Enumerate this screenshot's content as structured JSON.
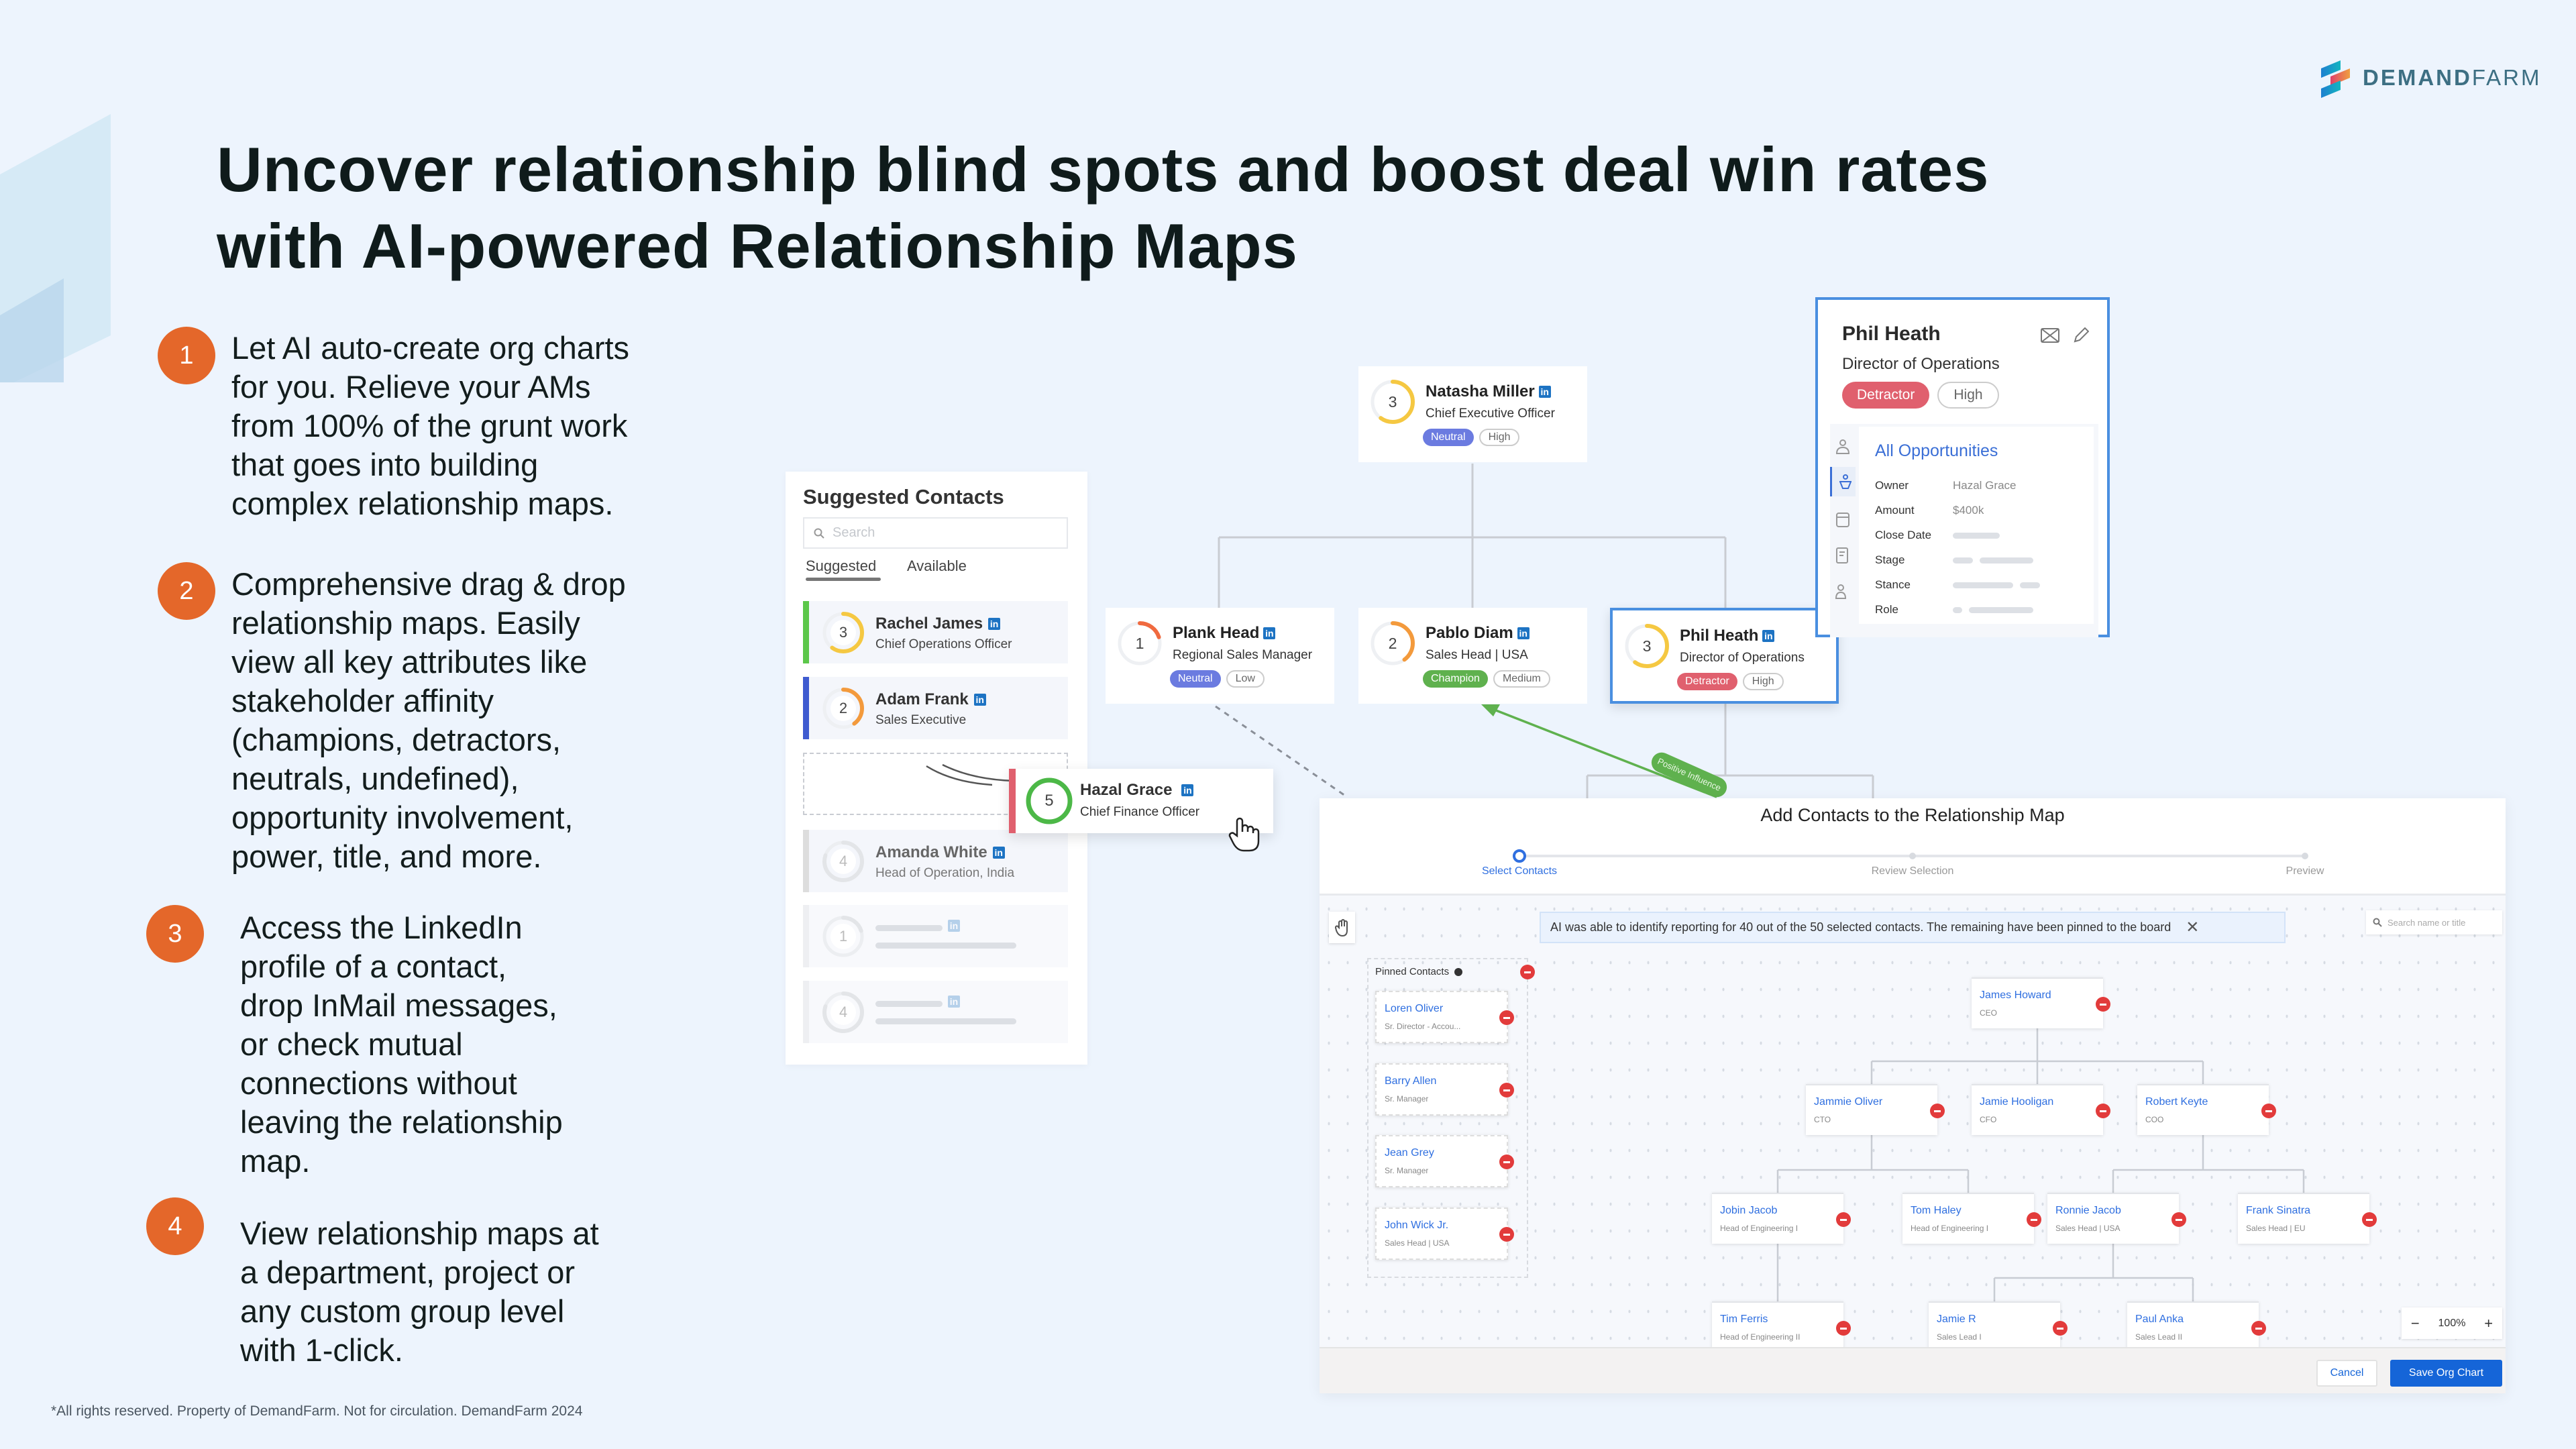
{
  "brand": {
    "logo_bold": "DEMAND",
    "logo_light": "FARM"
  },
  "headline": {
    "lines": [
      "Uncover relationship blind spots and boost deal win rates",
      "with AI-powered Relationship Maps"
    ]
  },
  "bullets": [
    {
      "num": "1",
      "lines": [
        "Let AI auto-create org charts",
        "for you. Relieve your AMs",
        "from 100% of the grunt work",
        "that goes into building",
        "complex relationship maps."
      ]
    },
    {
      "num": "2",
      "lines": [
        "Comprehensive drag & drop",
        "relationship maps. Easily",
        "view all key attributes like",
        "stakeholder affinity",
        "(champions, detractors,",
        "neutrals, undefined),",
        "opportunity involvement,",
        "power, title, and more."
      ]
    },
    {
      "num": "3",
      "lines": [
        "Access the LinkedIn",
        "profile of a contact,",
        "drop InMail messages,",
        "or check mutual",
        "connections without",
        "leaving the relationship",
        "map."
      ]
    },
    {
      "num": "4",
      "lines": [
        "View relationship maps at",
        "a department, project or",
        "any custom group level",
        "with 1-click."
      ]
    }
  ],
  "footer": "*All rights reserved. Property of DemandFarm. Not for circulation. DemandFarm 2024",
  "colors": {
    "accent": "#e4672a",
    "neutral": "#6b7be0",
    "champion": "#5fb14e",
    "detractor": "#e0606e",
    "primary": "#1565d8"
  },
  "suggested": {
    "title": "Suggested Contacts",
    "search_placeholder": "Search",
    "tabs": [
      "Suggested",
      "Available"
    ],
    "active_tab": "Suggested",
    "rows": [
      {
        "score": "3",
        "name": "Rachel James",
        "title": "Chief Operations Officer",
        "bar": "#5cc74a"
      },
      {
        "score": "2",
        "name": "Adam Frank",
        "title": "Sales Executive",
        "bar": "#3f5bd0"
      },
      {
        "score": "4",
        "name": "Amanda White",
        "title": "Head of Operation, India",
        "bar": "#dddddd",
        "faded": true
      },
      {
        "score": "1",
        "skeleton": true
      },
      {
        "score": "4",
        "skeleton": true
      }
    ],
    "dragging": {
      "score": "5",
      "name": "Hazal Grace",
      "title": "Chief Finance Officer"
    }
  },
  "org": [
    {
      "score": "3",
      "name": "Natasha Miller",
      "title": "Chief Executive Officer",
      "stance": "Neutral",
      "power": "High"
    },
    {
      "score": "1",
      "name": "Plank Head",
      "title": "Regional Sales Manager",
      "stance": "Neutral",
      "power": "Low"
    },
    {
      "score": "2",
      "name": "Pablo Diam",
      "title": "Sales Head | USA",
      "stance": "Champion",
      "power": "Medium"
    },
    {
      "score": "3",
      "name": "Phil Heath",
      "title": "Director of Operations",
      "stance": "Detractor",
      "power": "High",
      "selected": true
    }
  ],
  "relationship_label": "Positive Influence",
  "popup": {
    "name": "Phil Heath",
    "title": "Director of Operations",
    "stance": "Detractor",
    "power": "High",
    "section": "All Opportunities",
    "fields": [
      {
        "label": "Owner",
        "value": "Hazal Grace"
      },
      {
        "label": "Amount",
        "value": "$400k"
      },
      {
        "label": "Close Date",
        "value": ""
      },
      {
        "label": "Stage",
        "value": ""
      },
      {
        "label": "Stance",
        "value": ""
      },
      {
        "label": "Role",
        "value": ""
      }
    ]
  },
  "modal": {
    "title": "Add Contacts to the Relationship Map",
    "steps": [
      "Select Contacts",
      "Review Selection",
      "Preview"
    ],
    "active_step": "Select Contacts",
    "banner": "AI was able to identify reporting for 40 out of the 50 selected contacts. The remaining have been pinned to the board",
    "search_placeholder": "Search name or title",
    "pinned_label": "Pinned Contacts",
    "pinned": [
      {
        "name": "Loren Oliver",
        "title": "Sr. Director - Accou..."
      },
      {
        "name": "Barry Allen",
        "title": "Sr. Manager"
      },
      {
        "name": "Jean Grey",
        "title": "Sr. Manager"
      },
      {
        "name": "John Wick Jr.",
        "title": "Sales Head | USA"
      }
    ],
    "tree": [
      {
        "name": "James Howard",
        "title": "CEO"
      },
      {
        "name": "Jammie Oliver",
        "title": "CTO"
      },
      {
        "name": "Jamie Hooligan",
        "title": "CFO"
      },
      {
        "name": "Robert Keyte",
        "title": "COO"
      },
      {
        "name": "Jobin Jacob",
        "title": "Head of Engineering I"
      },
      {
        "name": "Tom Haley",
        "title": "Head of Engineering I"
      },
      {
        "name": "Ronnie Jacob",
        "title": "Sales Head | USA"
      },
      {
        "name": "Frank Sinatra",
        "title": "Sales Head | EU"
      },
      {
        "name": "Tim Ferris",
        "title": "Head of Engineering II"
      },
      {
        "name": "Jamie R",
        "title": "Sales Lead I"
      },
      {
        "name": "Paul Anka",
        "title": "Sales Lead II"
      }
    ],
    "zoom": "100%",
    "cancel": "Cancel",
    "save": "Save Org Chart"
  }
}
